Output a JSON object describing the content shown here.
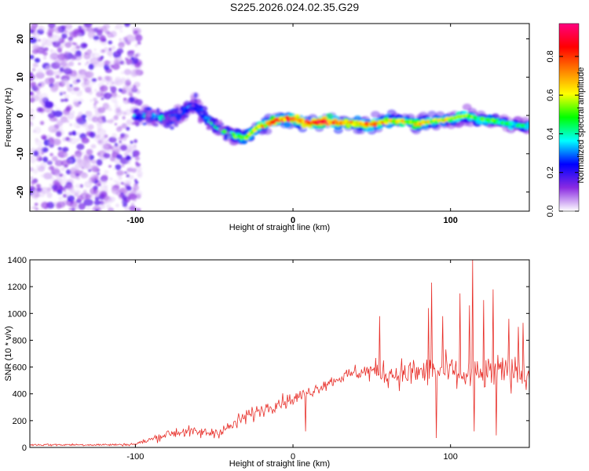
{
  "title": "S225.2026.024.02.35.G29",
  "chart_data": [
    {
      "type": "heatmap",
      "title": "S225.2026.024.02.35.G29",
      "xlabel": "Height of straight line (km)",
      "ylabel": "Frequency (Hz)",
      "xlim": [
        -167,
        150
      ],
      "ylim": [
        -25,
        24
      ],
      "x_ticks": [
        -100,
        0,
        100
      ],
      "x_tick_labels": [
        "-100",
        "0",
        "100"
      ],
      "y_ticks": [
        -20,
        -10,
        0,
        10,
        20
      ],
      "y_tick_labels": [
        "-20",
        "-10",
        "0",
        "10",
        "20"
      ],
      "colorbar": {
        "label": "Normalized spectral amplitude",
        "range": [
          0,
          0.97
        ],
        "ticks": [
          0.0,
          0.2,
          0.4,
          0.6,
          0.8
        ],
        "tick_labels": [
          "0.0",
          "0.2",
          "0.4",
          "0.6",
          "0.8"
        ],
        "colors": [
          "#ffffff",
          "#8a2be2",
          "#0000ff",
          "#00ffff",
          "#00ff00",
          "#ffff00",
          "#ff8000",
          "#ff0000",
          "#ff0080"
        ]
      },
      "noise_region_x": [
        -167,
        -97
      ],
      "ridge": {
        "x": [
          -100,
          -90,
          -80,
          -70,
          -62,
          -55,
          -45,
          -38,
          -30,
          -22,
          -15,
          -8,
          0,
          10,
          20,
          30,
          40,
          50,
          60,
          70,
          80,
          90,
          100,
          110,
          120,
          130,
          140,
          150
        ],
        "freq": [
          0,
          0,
          -1,
          1,
          3,
          -1,
          -4,
          -5,
          -6,
          -3,
          -2,
          -1,
          -1,
          -2,
          -1.5,
          -2,
          -2,
          -2.5,
          -1.5,
          -1.5,
          -2,
          -1.5,
          -1,
          0,
          -1,
          -1.5,
          -2.5,
          -3
        ],
        "amplitude": [
          0.35,
          0.4,
          0.4,
          0.35,
          0.3,
          0.4,
          0.45,
          0.5,
          0.55,
          0.65,
          0.75,
          0.8,
          0.85,
          0.85,
          0.9,
          0.8,
          0.75,
          0.75,
          0.7,
          0.65,
          0.65,
          0.6,
          0.6,
          0.55,
          0.5,
          0.5,
          0.45,
          0.45
        ]
      }
    },
    {
      "type": "line",
      "xlabel": "Height of straight line (km)",
      "ylabel": "SNR (10 * v/v)",
      "xlim": [
        -167,
        150
      ],
      "ylim": [
        0,
        1400
      ],
      "x_ticks": [
        -100,
        0,
        100
      ],
      "x_tick_labels": [
        "-100",
        "0",
        "100"
      ],
      "y_ticks": [
        0,
        200,
        400,
        600,
        800,
        1000,
        1200,
        1400
      ],
      "y_tick_labels": [
        "0",
        "200",
        "400",
        "600",
        "800",
        "1000",
        "1200",
        "1400"
      ],
      "series": [
        {
          "name": "SNR",
          "color": "#e8302a",
          "envelope_x": [
            -167,
            -110,
            -100,
            -90,
            -80,
            -70,
            -60,
            -50,
            -40,
            -30,
            -20,
            -10,
            0,
            10,
            20,
            30,
            40,
            50,
            60,
            70,
            80,
            90,
            100,
            110,
            120,
            130,
            140,
            150
          ],
          "envelope_mean": [
            20,
            20,
            25,
            60,
            100,
            120,
            110,
            110,
            150,
            230,
            280,
            330,
            360,
            410,
            470,
            520,
            560,
            570,
            550,
            550,
            560,
            560,
            560,
            530,
            540,
            560,
            560,
            550
          ],
          "envelope_spread": [
            12,
            12,
            15,
            35,
            50,
            60,
            55,
            60,
            70,
            80,
            70,
            70,
            70,
            60,
            60,
            60,
            80,
            110,
            130,
            150,
            160,
            160,
            170,
            170,
            170,
            170,
            160,
            150
          ],
          "spikes": [
            {
              "x": 8,
              "y": 120
            },
            {
              "x": 55,
              "y": 980
            },
            {
              "x": 86,
              "y": 1040
            },
            {
              "x": 88,
              "y": 1230
            },
            {
              "x": 91,
              "y": 70
            },
            {
              "x": 95,
              "y": 980
            },
            {
              "x": 106,
              "y": 1150
            },
            {
              "x": 112,
              "y": 1060
            },
            {
              "x": 114,
              "y": 1400
            },
            {
              "x": 115,
              "y": 120
            },
            {
              "x": 121,
              "y": 1100
            },
            {
              "x": 127,
              "y": 1180
            },
            {
              "x": 129,
              "y": 90
            },
            {
              "x": 137,
              "y": 960
            },
            {
              "x": 143,
              "y": 900
            },
            {
              "x": 146,
              "y": 930
            }
          ]
        }
      ]
    }
  ]
}
